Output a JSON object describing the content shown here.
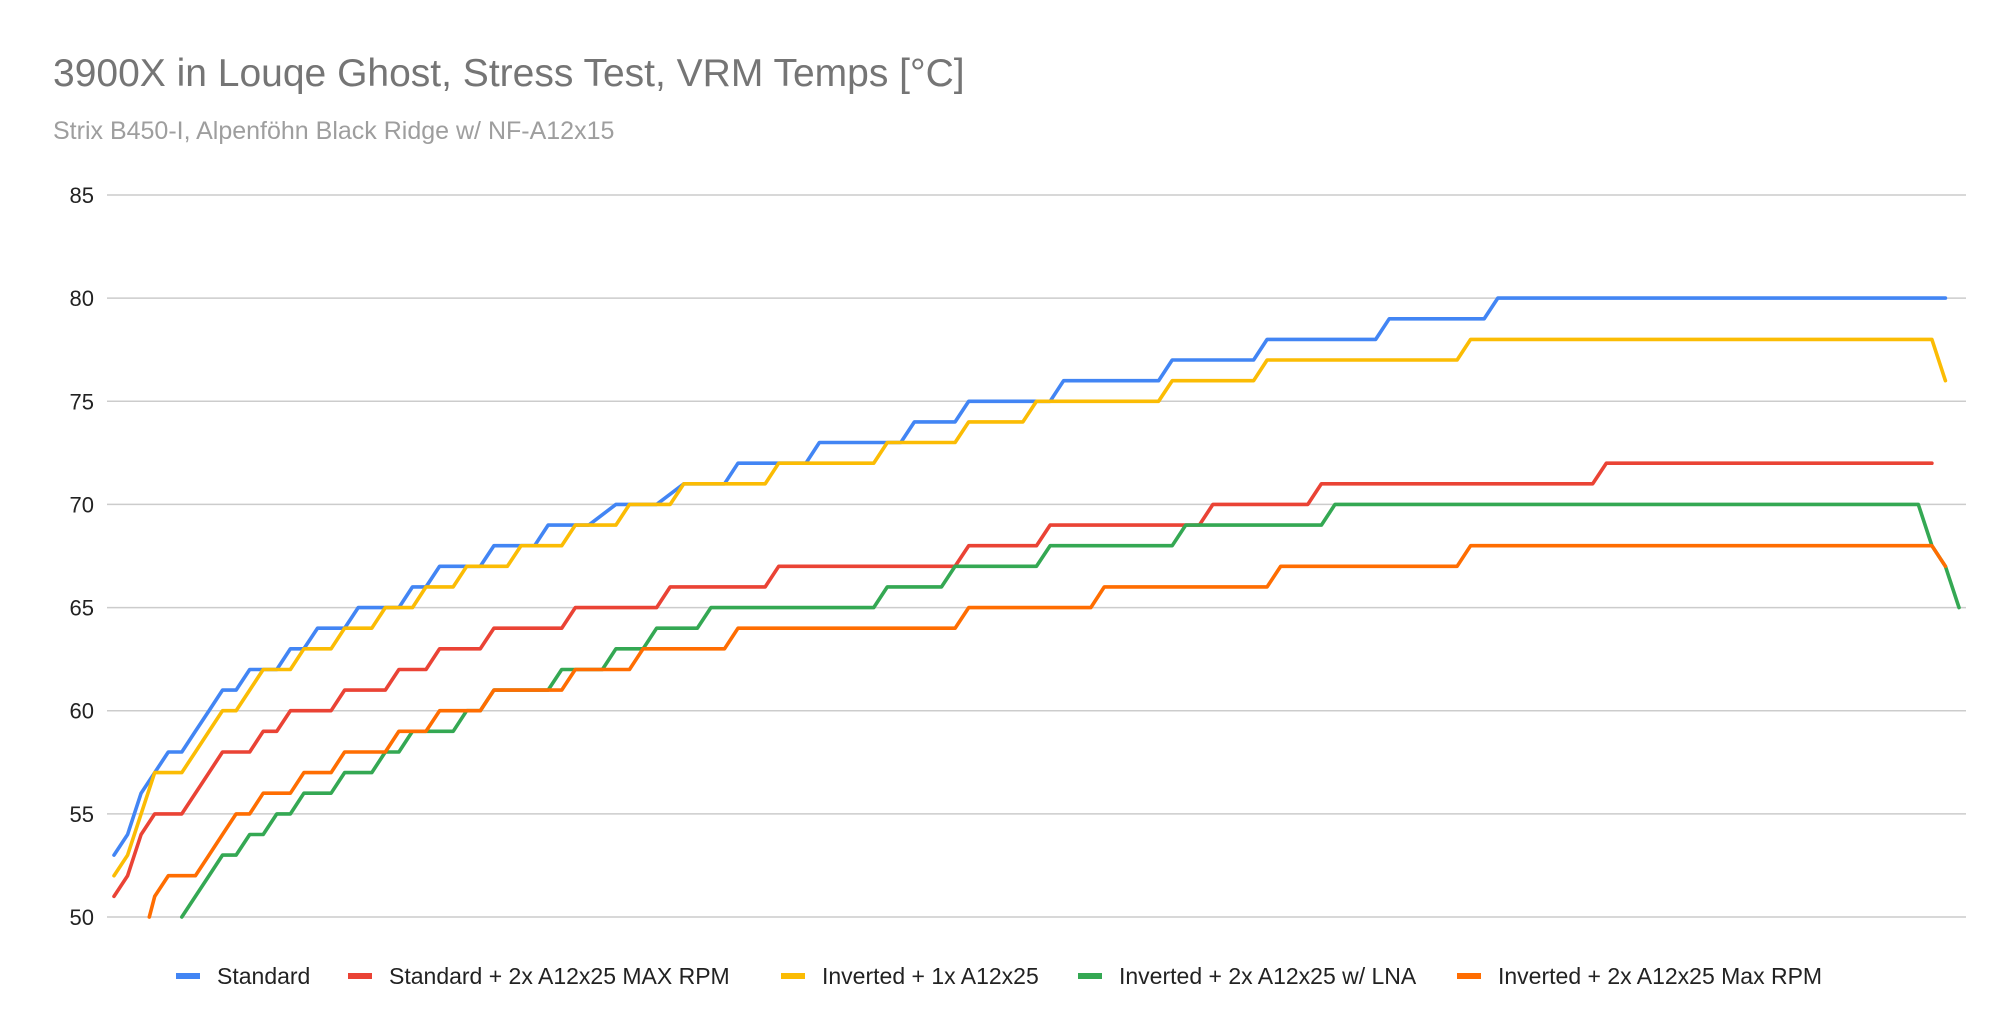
{
  "chart_data": {
    "type": "line",
    "title": "3900X in Louqe Ghost, Stress Test, VRM Temps [°C]",
    "subtitle": "Strix B450-I, Alpenföhn Black Ridge w/ NF-A12x15",
    "xlabel": "",
    "ylabel": "",
    "ylim": [
      50,
      85
    ],
    "yticks": [
      50,
      55,
      60,
      65,
      70,
      75,
      80,
      85
    ],
    "grid": true,
    "legend_position": "bottom",
    "x_count": 137,
    "series": [
      {
        "name": "Standard",
        "color": "#4285f4",
        "points": [
          [
            0,
            53
          ],
          [
            1,
            54
          ],
          [
            2,
            56
          ],
          [
            3,
            57
          ],
          [
            4,
            58
          ],
          [
            5,
            58
          ],
          [
            6,
            59
          ],
          [
            7,
            60
          ],
          [
            8,
            61
          ],
          [
            9,
            61
          ],
          [
            10,
            62
          ],
          [
            11,
            62
          ],
          [
            12,
            62
          ],
          [
            13,
            63
          ],
          [
            14,
            63
          ],
          [
            15,
            64
          ],
          [
            16,
            64
          ],
          [
            17,
            64
          ],
          [
            18,
            65
          ],
          [
            19,
            65
          ],
          [
            20,
            65
          ],
          [
            21,
            65
          ],
          [
            22,
            66
          ],
          [
            23,
            66
          ],
          [
            24,
            67
          ],
          [
            25,
            67
          ],
          [
            26,
            67
          ],
          [
            27,
            67
          ],
          [
            28,
            68
          ],
          [
            29,
            68
          ],
          [
            31,
            68
          ],
          [
            32,
            69
          ],
          [
            34,
            69
          ],
          [
            35,
            69
          ],
          [
            37,
            70
          ],
          [
            40,
            70
          ],
          [
            42,
            71
          ],
          [
            45,
            71
          ],
          [
            46,
            72
          ],
          [
            51,
            72
          ],
          [
            52,
            73
          ],
          [
            58,
            73
          ],
          [
            59,
            74
          ],
          [
            62,
            74
          ],
          [
            63,
            75
          ],
          [
            69,
            75
          ],
          [
            70,
            76
          ],
          [
            77,
            76
          ],
          [
            78,
            77
          ],
          [
            84,
            77
          ],
          [
            85,
            78
          ],
          [
            93,
            78
          ],
          [
            94,
            79
          ],
          [
            101,
            79
          ],
          [
            102,
            80
          ],
          [
            135,
            80
          ]
        ]
      },
      {
        "name": "Standard + 2x A12x25 MAX RPM",
        "color": "#ea4335",
        "points": [
          [
            0,
            51
          ],
          [
            1,
            52
          ],
          [
            2,
            54
          ],
          [
            3,
            55
          ],
          [
            5,
            55
          ],
          [
            6,
            56
          ],
          [
            7,
            57
          ],
          [
            8,
            58
          ],
          [
            10,
            58
          ],
          [
            11,
            59
          ],
          [
            12,
            59
          ],
          [
            13,
            60
          ],
          [
            16,
            60
          ],
          [
            17,
            61
          ],
          [
            20,
            61
          ],
          [
            21,
            62
          ],
          [
            23,
            62
          ],
          [
            24,
            63
          ],
          [
            27,
            63
          ],
          [
            28,
            64
          ],
          [
            33,
            64
          ],
          [
            34,
            65
          ],
          [
            40,
            65
          ],
          [
            41,
            66
          ],
          [
            48,
            66
          ],
          [
            49,
            67
          ],
          [
            62,
            67
          ],
          [
            63,
            68
          ],
          [
            68,
            68
          ],
          [
            69,
            69
          ],
          [
            80,
            69
          ],
          [
            81,
            70
          ],
          [
            88,
            70
          ],
          [
            89,
            71
          ],
          [
            109,
            71
          ],
          [
            110,
            72
          ],
          [
            134,
            72
          ]
        ]
      },
      {
        "name": "Inverted + 1x A12x25",
        "color": "#fbbc04",
        "points": [
          [
            0,
            52
          ],
          [
            1,
            53
          ],
          [
            2,
            55
          ],
          [
            3,
            57
          ],
          [
            5,
            57
          ],
          [
            6,
            58
          ],
          [
            7,
            59
          ],
          [
            8,
            60
          ],
          [
            9,
            60
          ],
          [
            10,
            61
          ],
          [
            11,
            62
          ],
          [
            13,
            62
          ],
          [
            14,
            63
          ],
          [
            16,
            63
          ],
          [
            17,
            64
          ],
          [
            19,
            64
          ],
          [
            20,
            65
          ],
          [
            21,
            65
          ],
          [
            22,
            65
          ],
          [
            23,
            66
          ],
          [
            25,
            66
          ],
          [
            26,
            67
          ],
          [
            29,
            67
          ],
          [
            30,
            68
          ],
          [
            33,
            68
          ],
          [
            34,
            69
          ],
          [
            37,
            69
          ],
          [
            38,
            70
          ],
          [
            41,
            70
          ],
          [
            42,
            71
          ],
          [
            48,
            71
          ],
          [
            49,
            72
          ],
          [
            56,
            72
          ],
          [
            57,
            73
          ],
          [
            62,
            73
          ],
          [
            63,
            74
          ],
          [
            67,
            74
          ],
          [
            68,
            75
          ],
          [
            77,
            75
          ],
          [
            78,
            76
          ],
          [
            84,
            76
          ],
          [
            85,
            77
          ],
          [
            99,
            77
          ],
          [
            100,
            78
          ],
          [
            134,
            78
          ],
          [
            135,
            76
          ]
        ]
      },
      {
        "name": "Inverted + 2x A12x25 w/ LNA",
        "color": "#34a853",
        "points": [
          [
            5,
            50
          ],
          [
            6,
            51
          ],
          [
            7,
            52
          ],
          [
            8,
            53
          ],
          [
            9,
            53
          ],
          [
            10,
            54
          ],
          [
            11,
            54
          ],
          [
            12,
            55
          ],
          [
            13,
            55
          ],
          [
            14,
            56
          ],
          [
            16,
            56
          ],
          [
            17,
            57
          ],
          [
            19,
            57
          ],
          [
            20,
            58
          ],
          [
            21,
            58
          ],
          [
            22,
            59
          ],
          [
            25,
            59
          ],
          [
            26,
            60
          ],
          [
            27,
            60
          ],
          [
            28,
            61
          ],
          [
            32,
            61
          ],
          [
            33,
            62
          ],
          [
            36,
            62
          ],
          [
            37,
            63
          ],
          [
            39,
            63
          ],
          [
            40,
            64
          ],
          [
            43,
            64
          ],
          [
            44,
            65
          ],
          [
            56,
            65
          ],
          [
            57,
            66
          ],
          [
            61,
            66
          ],
          [
            62,
            67
          ],
          [
            68,
            67
          ],
          [
            69,
            68
          ],
          [
            78,
            68
          ],
          [
            79,
            69
          ],
          [
            89,
            69
          ],
          [
            90,
            70
          ],
          [
            133,
            70
          ],
          [
            134,
            68
          ],
          [
            135,
            67
          ],
          [
            136,
            65
          ]
        ]
      },
      {
        "name": "Inverted + 2x A12x25 Max RPM",
        "color": "#ff6d01",
        "points": [
          [
            2.6,
            50
          ],
          [
            3,
            51
          ],
          [
            4,
            52
          ],
          [
            6,
            52
          ],
          [
            7,
            53
          ],
          [
            8,
            54
          ],
          [
            9,
            55
          ],
          [
            10,
            55
          ],
          [
            11,
            56
          ],
          [
            13,
            56
          ],
          [
            14,
            57
          ],
          [
            16,
            57
          ],
          [
            17,
            58
          ],
          [
            20,
            58
          ],
          [
            21,
            59
          ],
          [
            23,
            59
          ],
          [
            24,
            60
          ],
          [
            27,
            60
          ],
          [
            28,
            61
          ],
          [
            33,
            61
          ],
          [
            34,
            62
          ],
          [
            38,
            62
          ],
          [
            39,
            63
          ],
          [
            45,
            63
          ],
          [
            46,
            64
          ],
          [
            62,
            64
          ],
          [
            63,
            65
          ],
          [
            72,
            65
          ],
          [
            73,
            66
          ],
          [
            85,
            66
          ],
          [
            86,
            67
          ],
          [
            99,
            67
          ],
          [
            100,
            68
          ],
          [
            134,
            68
          ],
          [
            135,
            67
          ]
        ]
      }
    ]
  }
}
